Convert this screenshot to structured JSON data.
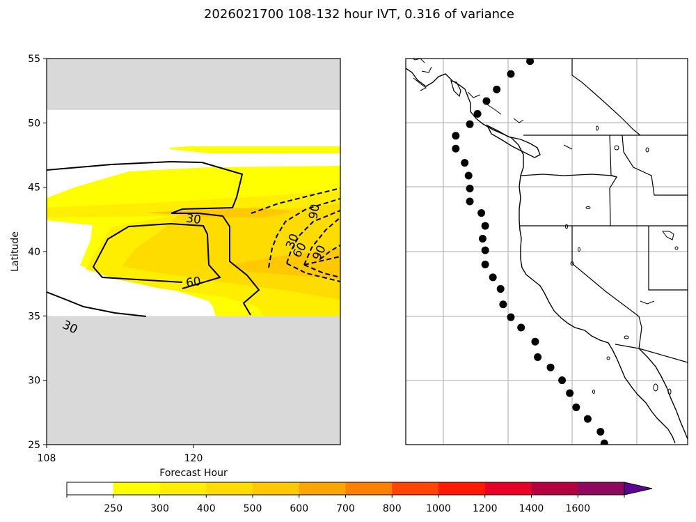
{
  "figure": {
    "title": "2026021700 108-132 hour IVT, 0.316 of variance"
  },
  "chart_data": [
    {
      "type": "contour",
      "xlabel": "Forecast Hour",
      "ylabel": "Latitude",
      "xlim": [
        108,
        132
      ],
      "ylim": [
        25,
        55
      ],
      "xticks": [
        "108",
        "120"
      ],
      "yticks": [
        "25",
        "30",
        "35",
        "40",
        "45",
        "50",
        "55"
      ],
      "masked_lat_bands": [
        [
          25,
          35
        ],
        [
          51,
          55
        ]
      ],
      "contour_labels": [
        {
          "text": "30",
          "x": 120,
          "y": 42.5,
          "style": "solid"
        },
        {
          "text": "60",
          "x": 120,
          "y": 37.6,
          "style": "solid"
        },
        {
          "text": "30",
          "x": 109.9,
          "y": 34.1,
          "style": "solid"
        },
        {
          "text": "30",
          "x": 128.1,
          "y": 40.8,
          "style": "dashed"
        },
        {
          "text": "60",
          "x": 128.7,
          "y": 40.1,
          "style": "dashed"
        },
        {
          "text": "90",
          "x": 129.9,
          "y": 43.1,
          "style": "dashed"
        },
        {
          "text": "90",
          "x": 130.3,
          "y": 39.9,
          "style": "dashed"
        }
      ]
    },
    {
      "type": "map",
      "region": "North American west coast",
      "markers_lonlat": [
        [
          -124.3,
          54.8
        ],
        [
          -125.8,
          53.8
        ],
        [
          -126.9,
          52.6
        ],
        [
          -127.7,
          51.7
        ],
        [
          -128.4,
          50.7
        ],
        [
          -129.0,
          49.9
        ],
        [
          -130.1,
          49.0
        ],
        [
          -130.1,
          48.0
        ],
        [
          -129.4,
          46.9
        ],
        [
          -129.1,
          45.9
        ],
        [
          -129.0,
          44.9
        ],
        [
          -129.0,
          43.9
        ],
        [
          -128.1,
          43.0
        ],
        [
          -127.8,
          42.0
        ],
        [
          -128.0,
          41.0
        ],
        [
          -127.8,
          40.1
        ],
        [
          -127.8,
          39.0
        ],
        [
          -127.2,
          38.0
        ],
        [
          -126.6,
          37.1
        ],
        [
          -126.4,
          35.9
        ],
        [
          -125.8,
          34.9
        ],
        [
          -125.0,
          34.1
        ],
        [
          -123.9,
          33.0
        ],
        [
          -123.7,
          31.8
        ],
        [
          -122.7,
          31.0
        ],
        [
          -121.8,
          30.0
        ],
        [
          -121.2,
          29.0
        ],
        [
          -120.7,
          27.9
        ],
        [
          -119.8,
          27.0
        ],
        [
          -118.8,
          26.0
        ],
        [
          -118.5,
          25.1
        ]
      ]
    },
    {
      "type": "colorbar",
      "ticks": [
        "250",
        "300",
        "400",
        "500",
        "600",
        "700",
        "800",
        "1000",
        "1200",
        "1400",
        "1600"
      ],
      "colors": [
        "#ffffff",
        "#ffff00",
        "#ffee00",
        "#ffdc00",
        "#ffc800",
        "#ffa500",
        "#ff7f00",
        "#ff4500",
        "#ff1a00",
        "#e60026",
        "#b50040",
        "#8b0a60",
        "#5e0494"
      ]
    }
  ]
}
